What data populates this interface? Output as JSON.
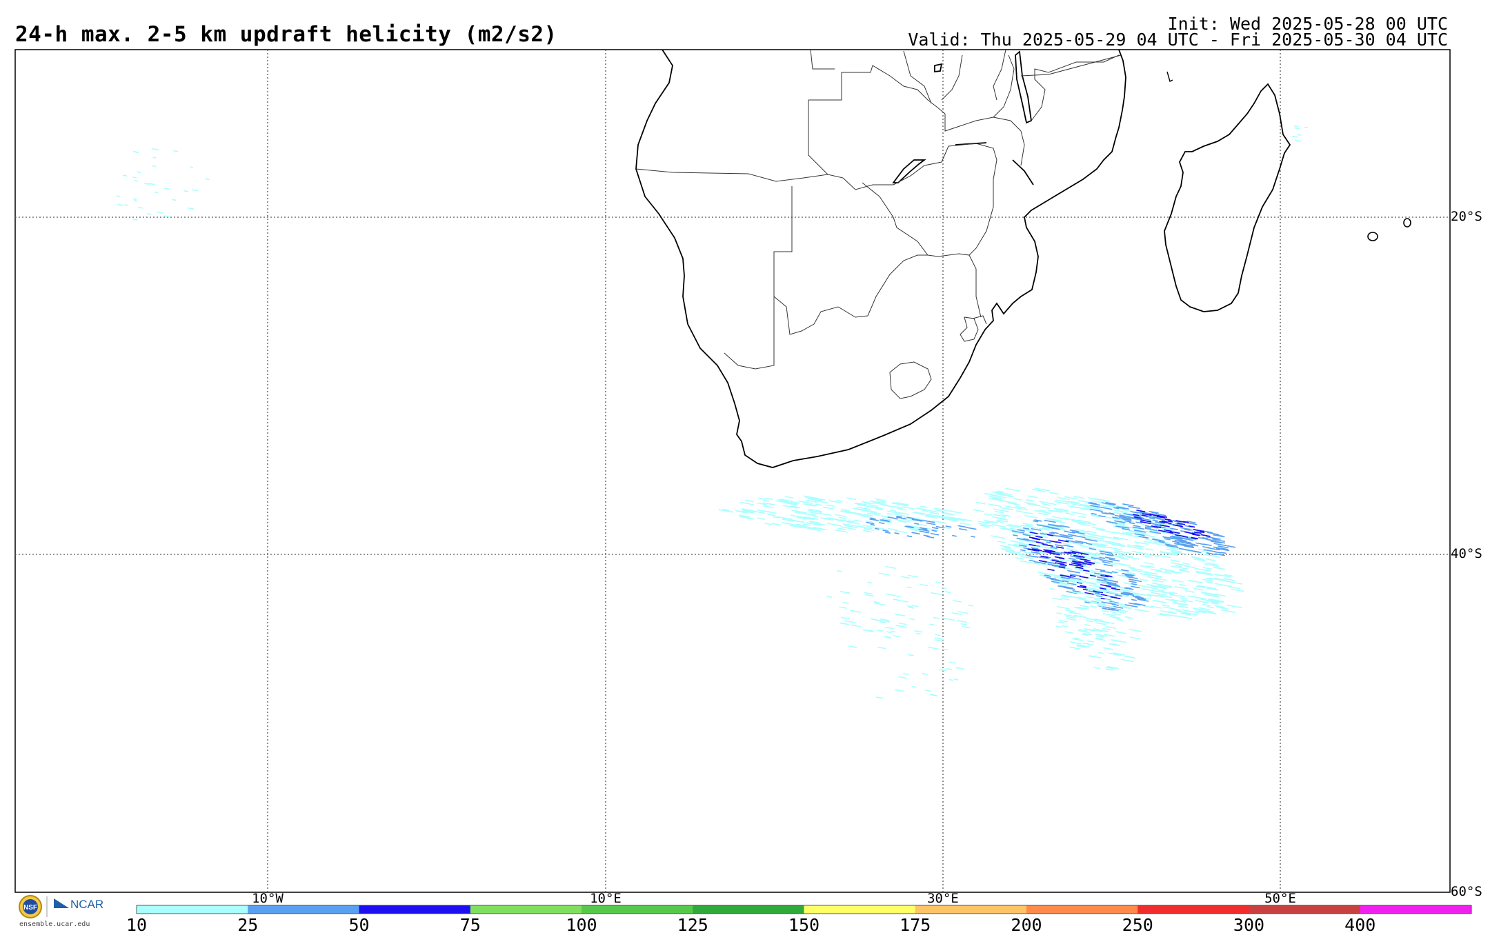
{
  "header": {
    "title": "24-h max. 2-5 km updraft helicity (m2/s2)",
    "init": "Init: Wed 2025-05-28 00 UTC",
    "valid": "Valid: Thu 2025-05-29 04 UTC - Fri 2025-05-30 04 UTC"
  },
  "map": {
    "lat_labels": [
      "20°S",
      "40°S",
      "60°S"
    ],
    "lon_labels": [
      "10°W",
      "10°E",
      "30°E",
      "50°E"
    ]
  },
  "colorbar": {
    "labels": [
      "10",
      "25",
      "50",
      "75",
      "100",
      "125",
      "150",
      "175",
      "200",
      "250",
      "300",
      "400"
    ],
    "colors": [
      "#a9ffff",
      "#5aa0f0",
      "#1d0ff0",
      "#7fe060",
      "#56c84a",
      "#2fa93a",
      "#ffff66",
      "#ffc466",
      "#ff8a4a",
      "#f02c2c",
      "#c84040",
      "#f020f0"
    ]
  },
  "footer": {
    "site": "ensemble.ucar.edu",
    "logos": [
      "nsf-logo",
      "ncar-logo"
    ],
    "ncar_text": "NCAR",
    "nsf_text": "NSF"
  }
}
